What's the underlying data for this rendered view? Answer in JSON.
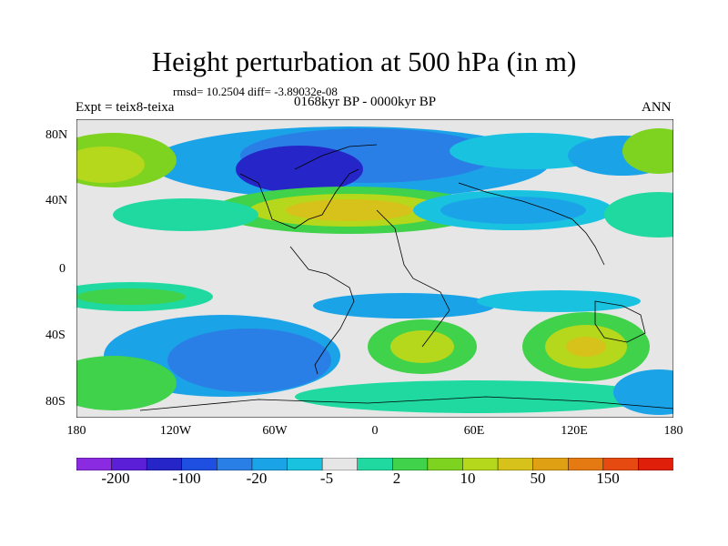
{
  "header": {
    "title": "Height perturbation at 500 hPa (in m)",
    "stats": "rmsd= 10.2504 diff= -3.89032e-08",
    "experiment": "Expt = teix8-teixa",
    "period": "0168kyr BP - 0000kyr BP",
    "season": "ANN"
  },
  "map": {
    "lat_labels": [
      "80N",
      "40N",
      "0",
      "40S",
      "80S"
    ],
    "lon_labels": [
      "180",
      "120W",
      "60W",
      "0",
      "60E",
      "120E",
      "180"
    ],
    "extent": {
      "lon": [
        -180,
        180
      ],
      "lat": [
        -90,
        90
      ]
    }
  },
  "colorbar": {
    "colors": [
      "#8a2be2",
      "#5a1fd6",
      "#2626c8",
      "#1f4fe0",
      "#2a7fe6",
      "#1ba3e8",
      "#19c3e0",
      "#e6e6e6",
      "#1fd9a0",
      "#3fd24a",
      "#7ed321",
      "#b5d81c",
      "#d6c21a",
      "#e0a014",
      "#e67a12",
      "#e64a10",
      "#e01f0a"
    ],
    "labels": [
      "-200",
      "-100",
      "-20",
      "-5",
      "2",
      "10",
      "50",
      "150"
    ]
  }
}
